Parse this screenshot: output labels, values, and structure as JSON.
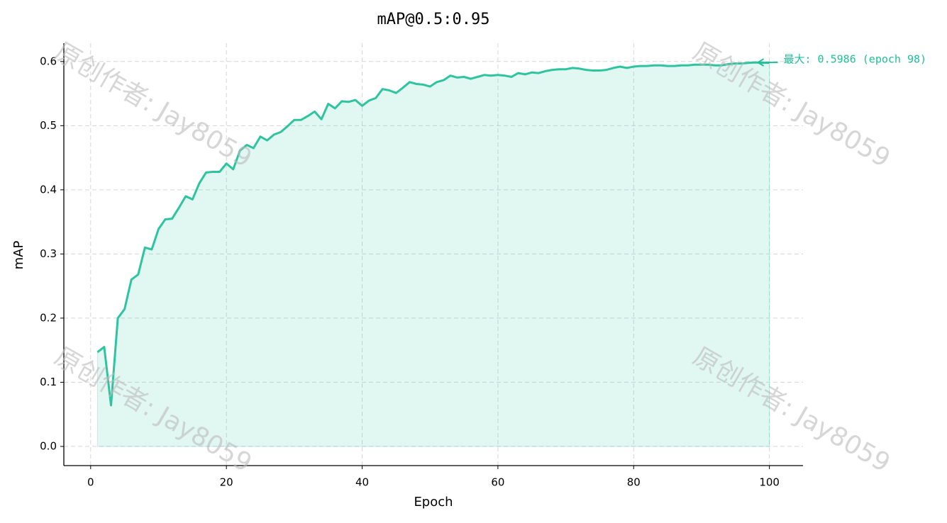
{
  "chart_data": {
    "type": "line",
    "title": "mAP@0.5:0.95",
    "x_label": "Epoch",
    "y_label": "mAP",
    "x": [
      1,
      2,
      3,
      4,
      5,
      6,
      7,
      8,
      9,
      10,
      11,
      12,
      13,
      14,
      15,
      16,
      17,
      18,
      19,
      20,
      21,
      22,
      23,
      24,
      25,
      26,
      27,
      28,
      29,
      30,
      31,
      32,
      33,
      34,
      35,
      36,
      37,
      38,
      39,
      40,
      41,
      42,
      43,
      44,
      45,
      46,
      47,
      48,
      49,
      50,
      51,
      52,
      53,
      54,
      55,
      56,
      57,
      58,
      59,
      60,
      61,
      62,
      63,
      64,
      65,
      66,
      67,
      68,
      69,
      70,
      71,
      72,
      73,
      74,
      75,
      76,
      77,
      78,
      79,
      80,
      81,
      82,
      83,
      84,
      85,
      86,
      87,
      88,
      89,
      90,
      91,
      92,
      93,
      94,
      95,
      96,
      97,
      98,
      99,
      100
    ],
    "values": [
      0.147,
      0.155,
      0.064,
      0.2,
      0.214,
      0.26,
      0.268,
      0.31,
      0.307,
      0.339,
      0.354,
      0.355,
      0.372,
      0.39,
      0.385,
      0.41,
      0.427,
      0.428,
      0.428,
      0.441,
      0.432,
      0.461,
      0.47,
      0.465,
      0.483,
      0.477,
      0.486,
      0.49,
      0.499,
      0.509,
      0.509,
      0.515,
      0.522,
      0.51,
      0.534,
      0.527,
      0.538,
      0.537,
      0.54,
      0.531,
      0.539,
      0.543,
      0.557,
      0.555,
      0.551,
      0.559,
      0.568,
      0.565,
      0.564,
      0.561,
      0.568,
      0.571,
      0.578,
      0.575,
      0.576,
      0.573,
      0.576,
      0.579,
      0.578,
      0.579,
      0.578,
      0.576,
      0.582,
      0.58,
      0.583,
      0.582,
      0.585,
      0.587,
      0.588,
      0.588,
      0.59,
      0.589,
      0.587,
      0.586,
      0.586,
      0.587,
      0.59,
      0.592,
      0.59,
      0.592,
      0.593,
      0.593,
      0.594,
      0.594,
      0.593,
      0.593,
      0.594,
      0.594,
      0.595,
      0.595,
      0.595,
      0.594,
      0.594,
      0.596,
      0.597,
      0.597,
      0.598,
      0.5986,
      0.598,
      0.598
    ],
    "color": "#2ec4a0",
    "fill": true,
    "xlim": [
      -3.95,
      104.95
    ],
    "xticks": [
      0,
      20,
      40,
      60,
      80,
      100
    ],
    "ylim": [
      -0.0299,
      0.6285
    ],
    "yticks": [
      {
        "value": 0,
        "label": "0.0"
      },
      0.1,
      0.2,
      0.3,
      0.4,
      0.5,
      0.6
    ],
    "grid": true,
    "annotation": {
      "text": "最大: 0.5986 (epoch 98)",
      "x": 98,
      "y": 0.5986,
      "color": "#1fbf98"
    }
  },
  "watermark": "原创作者: Jay8059"
}
